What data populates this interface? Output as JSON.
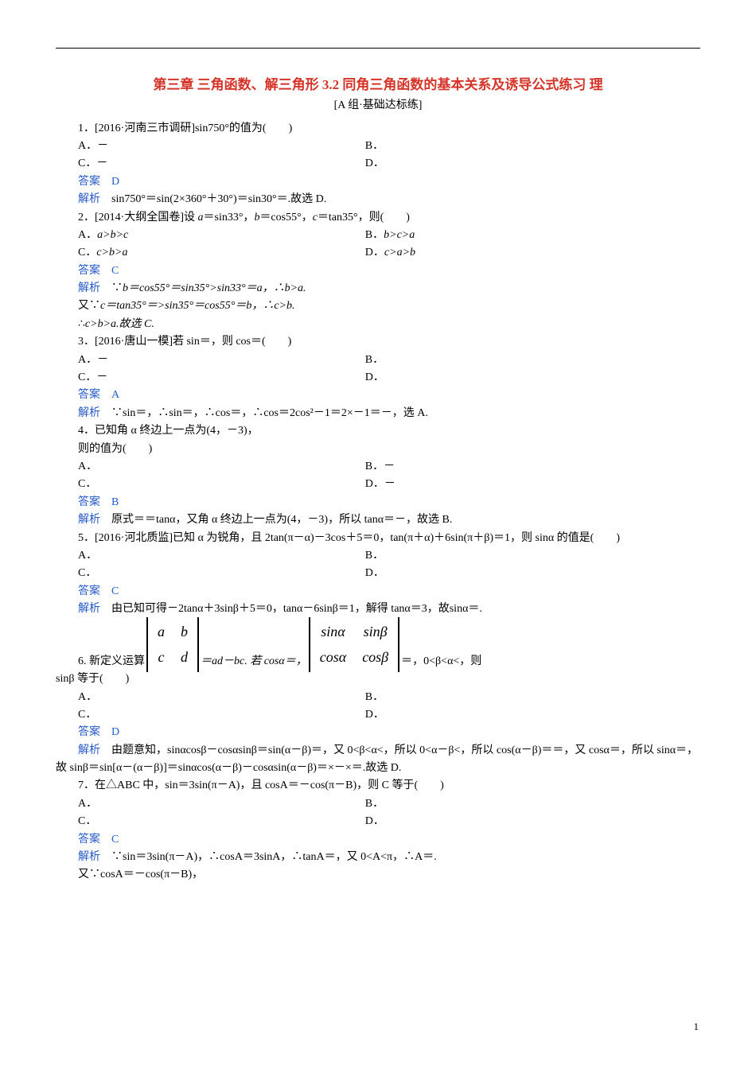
{
  "title": "第三章  三角函数、解三角形  3.2  同角三角函数的基本关系及诱导公式练习  理",
  "group_label": "[A 组·基础达标练]",
  "page_num": "1",
  "q1": {
    "stem": "1．[2016·河南三市调研]sin750°的值为(　　)",
    "a": "A．－",
    "b": "B．",
    "c": "C．－",
    "d": "D．",
    "ans_label": "答案",
    "ans": "D",
    "expl_label": "解析",
    "expl": "sin750°＝sin(2×360°＋30°)＝sin30°＝.故选 D."
  },
  "q2": {
    "stem_pre": "2．[2014·大纲全国卷]设 ",
    "stem_mid": "＝sin33°，",
    "stem_mid2": "＝cos55°，",
    "stem_end": "＝tan35°，则(　　)",
    "a_pre": "A．",
    "a": "a>b>c",
    "b_pre": "B．",
    "b": "b>c>a",
    "c_pre": "C．",
    "c": "c>b>a",
    "d_pre": "D．",
    "d": "c>a>b",
    "ans_label": "答案",
    "ans": "C",
    "expl_label": "解析",
    "expl1_pre": "∵",
    "expl1": "b＝cos55°＝sin35°>sin33°＝a，∴b>a.",
    "expl2_pre": "又∵",
    "expl2": "c＝tan35°＝>sin35°＝cos55°＝b，∴c>b.",
    "expl3_pre": "∴",
    "expl3": "c>b>a.故选 C."
  },
  "q3": {
    "stem": "3．[2016·唐山一模]若 sin＝，则 cos＝(　　)",
    "a": "A．－",
    "b": "B．",
    "c": "C．－",
    "d": "D．",
    "ans_label": "答案",
    "ans": "A",
    "expl_label": "解析",
    "expl": "∵sin＝，∴sin＝，∴cos＝，∴cos＝2cos²－1＝2×－1＝－，选 A."
  },
  "q4": {
    "stem": "4．已知角 α 终边上一点为(4，－3)，",
    "stem2": "则的值为(　　)",
    "a": "A．",
    "b": "B．－",
    "c": "C．",
    "d": "D．－",
    "ans_label": "答案",
    "ans": "B",
    "expl_label": "解析",
    "expl": "原式＝＝tanα，又角 α 终边上一点为(4，－3)，所以 tanα＝－，故选 B."
  },
  "q5": {
    "stem": "5．[2016·河北质监]已知 α 为锐角，且 2tan(π－α)－3cos＋5＝0，tan(π＋α)＋6sin(π＋β)＝1，则 sinα 的值是(　　)",
    "a": "A．",
    "b": "B．",
    "c": "C．",
    "d": "D．",
    "ans_label": "答案",
    "ans": "C",
    "expl_label": "解析",
    "expl": "由已知可得－2tanα＋3sinβ＋5＝0，tanα－6sinβ＝1，解得 tanα＝3，故sinα＝."
  },
  "q6": {
    "stem_pre": "6. 新定义运算",
    "det1": {
      "r1c1": "a",
      "r1c2": "b",
      "r2c1": "c",
      "r2c2": "d"
    },
    "stem_mid": "＝ad－bc. 若 cosα＝，",
    "det2": {
      "r1c1": "sinα",
      "r1c2": "sinβ",
      "r2c1": "cosα",
      "r2c2": "cosβ"
    },
    "stem_end": "＝，0<β<α<，则",
    "stem2": "sinβ 等于(　　)",
    "a": "A．",
    "b": "B．",
    "c": "C．",
    "d": "D．",
    "ans_label": "答案",
    "ans": "D",
    "expl_label": "解析",
    "expl": "由题意知，sinαcosβ－cosαsinβ＝sin(α－β)＝，又 0<β<α<，所以 0<α－β<，所以 cos(α－β)＝＝，又 cosα＝，所以 sinα＝，故 sinβ＝sin[α－(α－β)]＝sinαcos(α－β)－cosαsin(α－β)＝×－×＝.故选 D."
  },
  "q7": {
    "stem": "7．在△ABC 中，sin＝3sin(π－A)，且 cosA＝－cos(π－B)，则 C 等于(　　)",
    "a": "A．",
    "b": "B．",
    "c": "C．",
    "d": "D．",
    "ans_label": "答案",
    "ans": "C",
    "expl_label": "解析",
    "expl": "∵sin＝3sin(π－A)，∴cosA＝3sinA，∴tanA＝，又 0<A<π，∴A＝.",
    "expl2": "又∵cosA＝－cos(π－B)，"
  }
}
